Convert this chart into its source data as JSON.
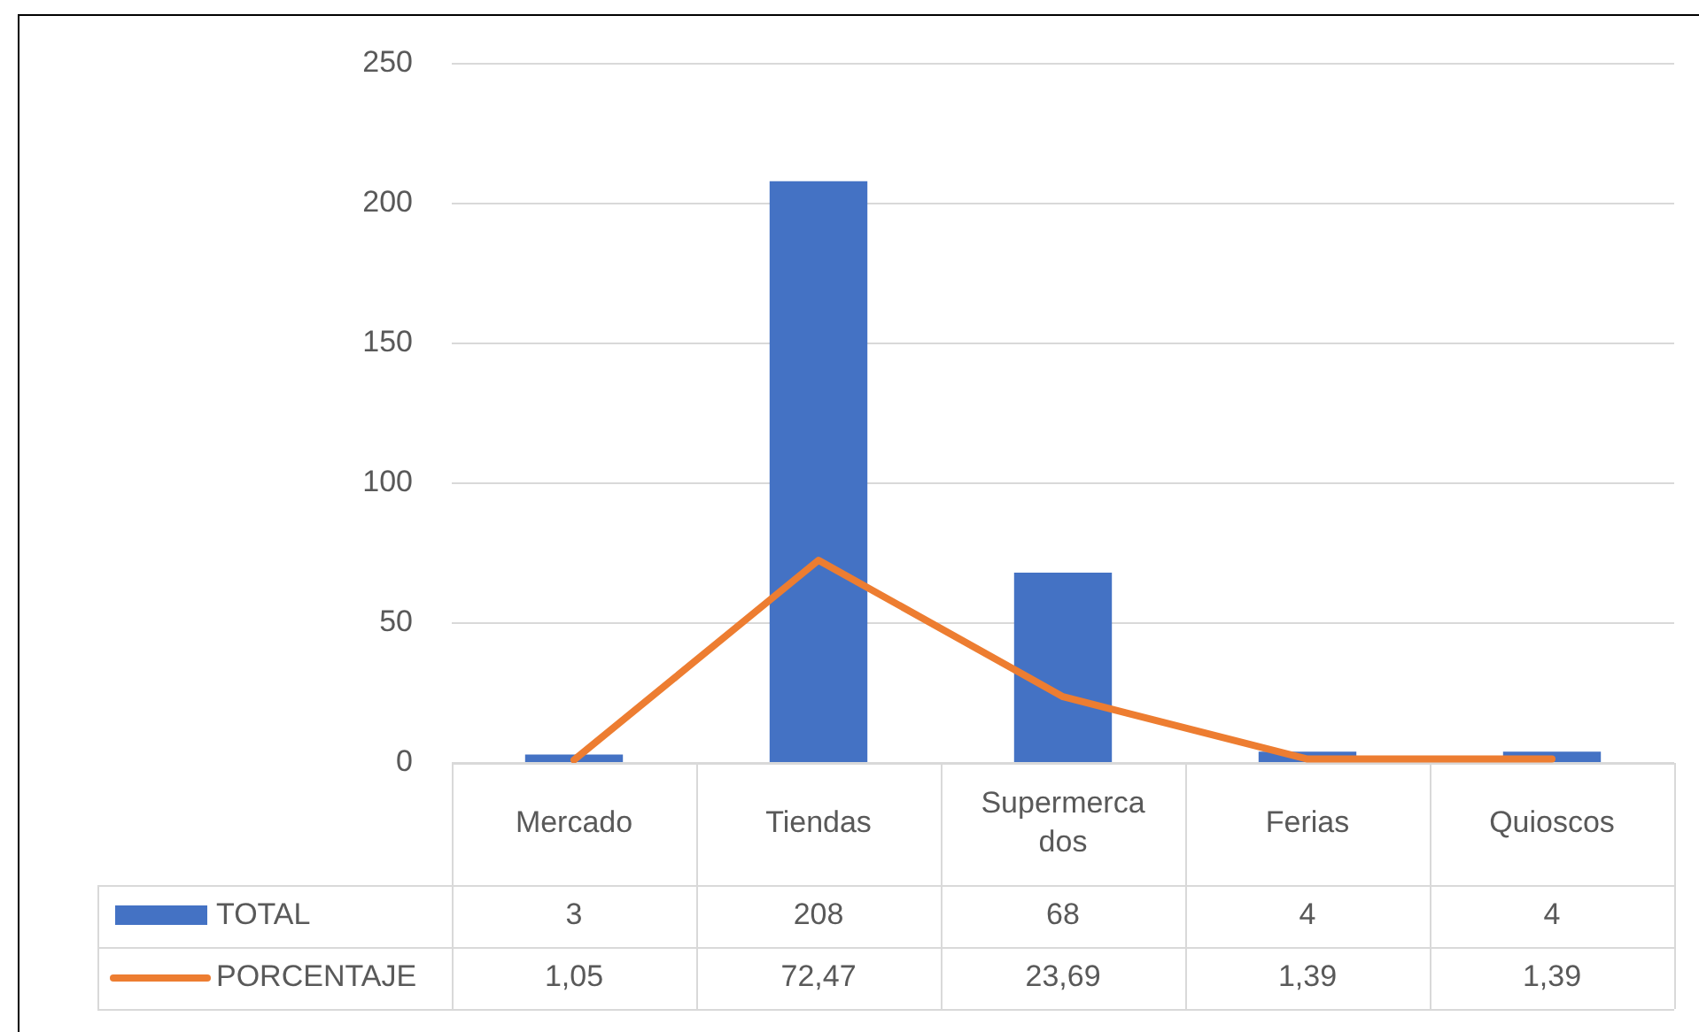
{
  "chart_data": {
    "type": "bar",
    "categories": [
      "Mercado",
      "Tiendas",
      "Supermercados",
      "Ferias",
      "Quioscos"
    ],
    "series": [
      {
        "name": "TOTAL",
        "color": "#4472c4",
        "values": [
          3,
          208,
          68,
          4,
          4
        ],
        "value_labels": [
          "3",
          "208",
          "68",
          "4",
          "4"
        ]
      },
      {
        "name": "PORCENTAJE",
        "type": "line",
        "color": "#ed7d31",
        "values": [
          1.05,
          72.47,
          23.69,
          1.39,
          1.39
        ],
        "value_labels": [
          "1,05",
          "72,47",
          "23,69",
          "1,39",
          "1,39"
        ]
      }
    ],
    "ylim": [
      0,
      250
    ],
    "yticks": [
      0,
      50,
      100,
      150,
      200,
      250
    ],
    "grid": "y",
    "legend": "bottom",
    "marker": "none",
    "data_labels": true
  }
}
